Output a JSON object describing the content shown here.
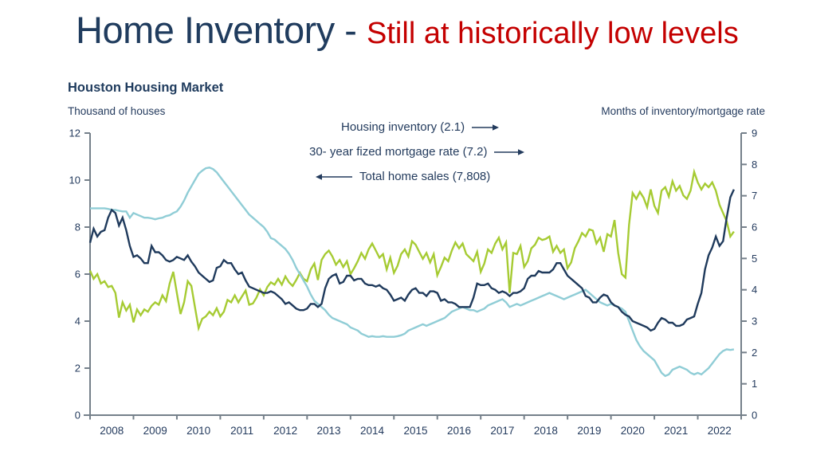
{
  "title": {
    "main": "Home Inventory - ",
    "highlight": "Still at historically low levels"
  },
  "subtitle": "Houston Housing Market",
  "axis_captions": {
    "left": "Thousand of houses",
    "right": "Months of inventory/mortgage rate"
  },
  "annotations": [
    {
      "label": "Housing inventory (2.1)",
      "arrow": "right"
    },
    {
      "label": "30- year fized mortgage rate (7.2)",
      "arrow": "right"
    },
    {
      "label": "Total home sales (7,808)",
      "arrow": "left"
    }
  ],
  "colors": {
    "title_navy": "#203c5e",
    "title_red": "#c40000",
    "axis_gray": "#75808a",
    "sales_green": "#a6cb33",
    "inventory_blue": "#90cdd6",
    "rate_navy": "#1f3a5c"
  },
  "chart_data": {
    "type": "line",
    "title": "Houston Housing Market",
    "xlabel": "",
    "ylabel_left": "Thousand of houses",
    "ylabel_right": "Months of inventory/mortgage rate",
    "grid": false,
    "legend_position": "annotated-arrows-top-center",
    "x_frequency": "monthly",
    "x_start": "2008-01",
    "x_end": "2022-11",
    "categories": [
      "2008",
      "2009",
      "2010",
      "2011",
      "2012",
      "2013",
      "2014",
      "2015",
      "2016",
      "2017",
      "2018",
      "2019",
      "2020",
      "2021",
      "2022"
    ],
    "left_axis": {
      "min": 0,
      "max": 12,
      "ticks": [
        0,
        2,
        4,
        6,
        8,
        10,
        12
      ]
    },
    "right_axis": {
      "min": 0,
      "max": 9,
      "ticks": [
        0,
        1,
        2,
        3,
        4,
        5,
        6,
        7,
        8,
        9
      ]
    },
    "series": [
      {
        "name": "Total home sales",
        "axis": "left",
        "unit": "thousand houses",
        "latest_label": "7,808",
        "color": "#a6cb33",
        "values": [
          6.15,
          5.8,
          6.0,
          5.6,
          5.7,
          5.45,
          5.5,
          5.2,
          4.15,
          4.8,
          4.45,
          4.7,
          3.95,
          4.5,
          4.25,
          4.5,
          4.4,
          4.65,
          4.8,
          4.7,
          5.1,
          4.85,
          5.6,
          6.1,
          5.2,
          4.3,
          4.8,
          5.7,
          5.5,
          4.6,
          3.7,
          4.1,
          4.2,
          4.4,
          4.25,
          4.55,
          4.2,
          4.4,
          4.9,
          4.8,
          5.1,
          4.8,
          5.05,
          5.3,
          4.7,
          4.75,
          5.0,
          5.35,
          5.1,
          5.45,
          5.65,
          5.55,
          5.8,
          5.55,
          5.9,
          5.65,
          5.5,
          5.75,
          6.05,
          5.8,
          5.7,
          6.2,
          6.45,
          5.75,
          6.6,
          6.85,
          7.0,
          6.75,
          6.4,
          6.6,
          6.3,
          6.55,
          6.0,
          6.25,
          6.55,
          6.9,
          6.65,
          7.05,
          7.3,
          7.0,
          6.7,
          6.85,
          6.2,
          6.7,
          6.05,
          6.35,
          6.85,
          7.05,
          6.75,
          7.4,
          7.25,
          6.95,
          6.65,
          6.9,
          6.5,
          6.85,
          5.95,
          6.3,
          6.7,
          6.55,
          7.0,
          7.35,
          7.1,
          7.3,
          6.85,
          6.7,
          6.55,
          6.95,
          6.1,
          6.45,
          7.05,
          6.9,
          7.3,
          7.55,
          7.05,
          7.35,
          5.2,
          6.9,
          6.85,
          7.2,
          6.3,
          6.55,
          7.1,
          7.25,
          7.55,
          7.45,
          7.5,
          7.6,
          6.95,
          7.2,
          6.9,
          7.05,
          6.25,
          6.5,
          7.1,
          7.4,
          7.75,
          7.6,
          7.9,
          7.85,
          7.3,
          7.55,
          6.95,
          7.7,
          7.6,
          8.3,
          6.9,
          6.0,
          5.85,
          8.1,
          9.45,
          9.2,
          9.5,
          9.25,
          8.85,
          9.6,
          8.9,
          8.6,
          9.55,
          9.7,
          9.3,
          9.95,
          9.55,
          9.75,
          9.35,
          9.2,
          9.55,
          10.35,
          9.9,
          9.6,
          9.85,
          9.7,
          9.9,
          9.55,
          8.95,
          8.6,
          8.25,
          7.6,
          7.81
        ]
      },
      {
        "name": "Housing inventory",
        "axis": "right",
        "unit": "months of inventory",
        "latest_label": "2.1",
        "color": "#90cdd6",
        "values": [
          6.6,
          6.6,
          6.6,
          6.6,
          6.6,
          6.58,
          6.55,
          6.55,
          6.52,
          6.5,
          6.5,
          6.3,
          6.45,
          6.4,
          6.35,
          6.3,
          6.3,
          6.28,
          6.25,
          6.28,
          6.3,
          6.35,
          6.38,
          6.45,
          6.5,
          6.65,
          6.85,
          7.1,
          7.3,
          7.5,
          7.7,
          7.8,
          7.88,
          7.9,
          7.85,
          7.75,
          7.6,
          7.45,
          7.3,
          7.15,
          7.0,
          6.85,
          6.7,
          6.55,
          6.4,
          6.3,
          6.2,
          6.1,
          6.0,
          5.85,
          5.65,
          5.6,
          5.5,
          5.4,
          5.3,
          5.15,
          4.95,
          4.7,
          4.5,
          4.3,
          4.1,
          3.85,
          3.65,
          3.55,
          3.45,
          3.35,
          3.2,
          3.1,
          3.05,
          3.0,
          2.95,
          2.9,
          2.8,
          2.75,
          2.7,
          2.6,
          2.55,
          2.5,
          2.52,
          2.5,
          2.5,
          2.52,
          2.5,
          2.5,
          2.5,
          2.52,
          2.55,
          2.6,
          2.7,
          2.75,
          2.8,
          2.85,
          2.9,
          2.85,
          2.9,
          2.95,
          3.0,
          3.05,
          3.1,
          3.2,
          3.3,
          3.35,
          3.4,
          3.45,
          3.4,
          3.35,
          3.35,
          3.3,
          3.35,
          3.4,
          3.5,
          3.55,
          3.6,
          3.65,
          3.7,
          3.6,
          3.45,
          3.5,
          3.55,
          3.5,
          3.55,
          3.6,
          3.65,
          3.7,
          3.75,
          3.8,
          3.85,
          3.9,
          3.85,
          3.8,
          3.75,
          3.7,
          3.75,
          3.8,
          3.85,
          3.9,
          3.95,
          4.0,
          3.9,
          3.8,
          3.7,
          3.6,
          3.55,
          3.5,
          3.55,
          3.5,
          3.45,
          3.4,
          3.3,
          3.0,
          2.7,
          2.4,
          2.2,
          2.05,
          1.95,
          1.85,
          1.75,
          1.55,
          1.35,
          1.25,
          1.3,
          1.45,
          1.5,
          1.55,
          1.5,
          1.45,
          1.35,
          1.3,
          1.35,
          1.3,
          1.4,
          1.5,
          1.65,
          1.8,
          1.95,
          2.05,
          2.1,
          2.08,
          2.1
        ]
      },
      {
        "name": "30-year fixed mortgage rate",
        "axis": "right",
        "unit": "percent",
        "latest_label": "7.2",
        "color": "#1f3a5c",
        "values": [
          5.5,
          5.95,
          5.7,
          5.85,
          5.9,
          6.3,
          6.55,
          6.45,
          6.05,
          6.3,
          5.9,
          5.4,
          5.05,
          5.1,
          5.0,
          4.85,
          4.85,
          5.4,
          5.2,
          5.2,
          5.1,
          4.95,
          4.9,
          4.95,
          5.05,
          5.0,
          4.95,
          5.1,
          4.9,
          4.75,
          4.55,
          4.45,
          4.35,
          4.25,
          4.3,
          4.7,
          4.75,
          4.95,
          4.85,
          4.85,
          4.65,
          4.5,
          4.55,
          4.3,
          4.1,
          4.05,
          4.0,
          3.95,
          3.9,
          3.9,
          3.95,
          3.9,
          3.8,
          3.7,
          3.55,
          3.6,
          3.5,
          3.4,
          3.35,
          3.35,
          3.4,
          3.55,
          3.55,
          3.45,
          3.55,
          4.05,
          4.35,
          4.45,
          4.5,
          4.2,
          4.25,
          4.45,
          4.45,
          4.3,
          4.35,
          4.35,
          4.2,
          4.15,
          4.15,
          4.1,
          4.15,
          4.05,
          4.0,
          3.85,
          3.65,
          3.7,
          3.75,
          3.65,
          3.85,
          4.0,
          4.05,
          3.9,
          3.9,
          3.8,
          3.95,
          3.95,
          3.9,
          3.65,
          3.7,
          3.6,
          3.6,
          3.55,
          3.45,
          3.45,
          3.45,
          3.45,
          3.75,
          4.2,
          4.15,
          4.15,
          4.2,
          4.05,
          4.0,
          3.9,
          3.95,
          3.9,
          3.8,
          3.9,
          3.9,
          3.95,
          4.05,
          4.35,
          4.45,
          4.45,
          4.6,
          4.55,
          4.55,
          4.55,
          4.65,
          4.85,
          4.85,
          4.65,
          4.45,
          4.35,
          4.25,
          4.15,
          4.05,
          3.8,
          3.75,
          3.6,
          3.6,
          3.75,
          3.85,
          3.8,
          3.6,
          3.5,
          3.45,
          3.3,
          3.2,
          3.15,
          3.0,
          2.95,
          2.9,
          2.85,
          2.8,
          2.7,
          2.75,
          2.95,
          3.1,
          3.05,
          2.95,
          2.95,
          2.85,
          2.85,
          2.9,
          3.05,
          3.1,
          3.15,
          3.55,
          3.9,
          4.65,
          5.1,
          5.35,
          5.7,
          5.4,
          5.55,
          6.3,
          6.95,
          7.2
        ]
      }
    ]
  }
}
